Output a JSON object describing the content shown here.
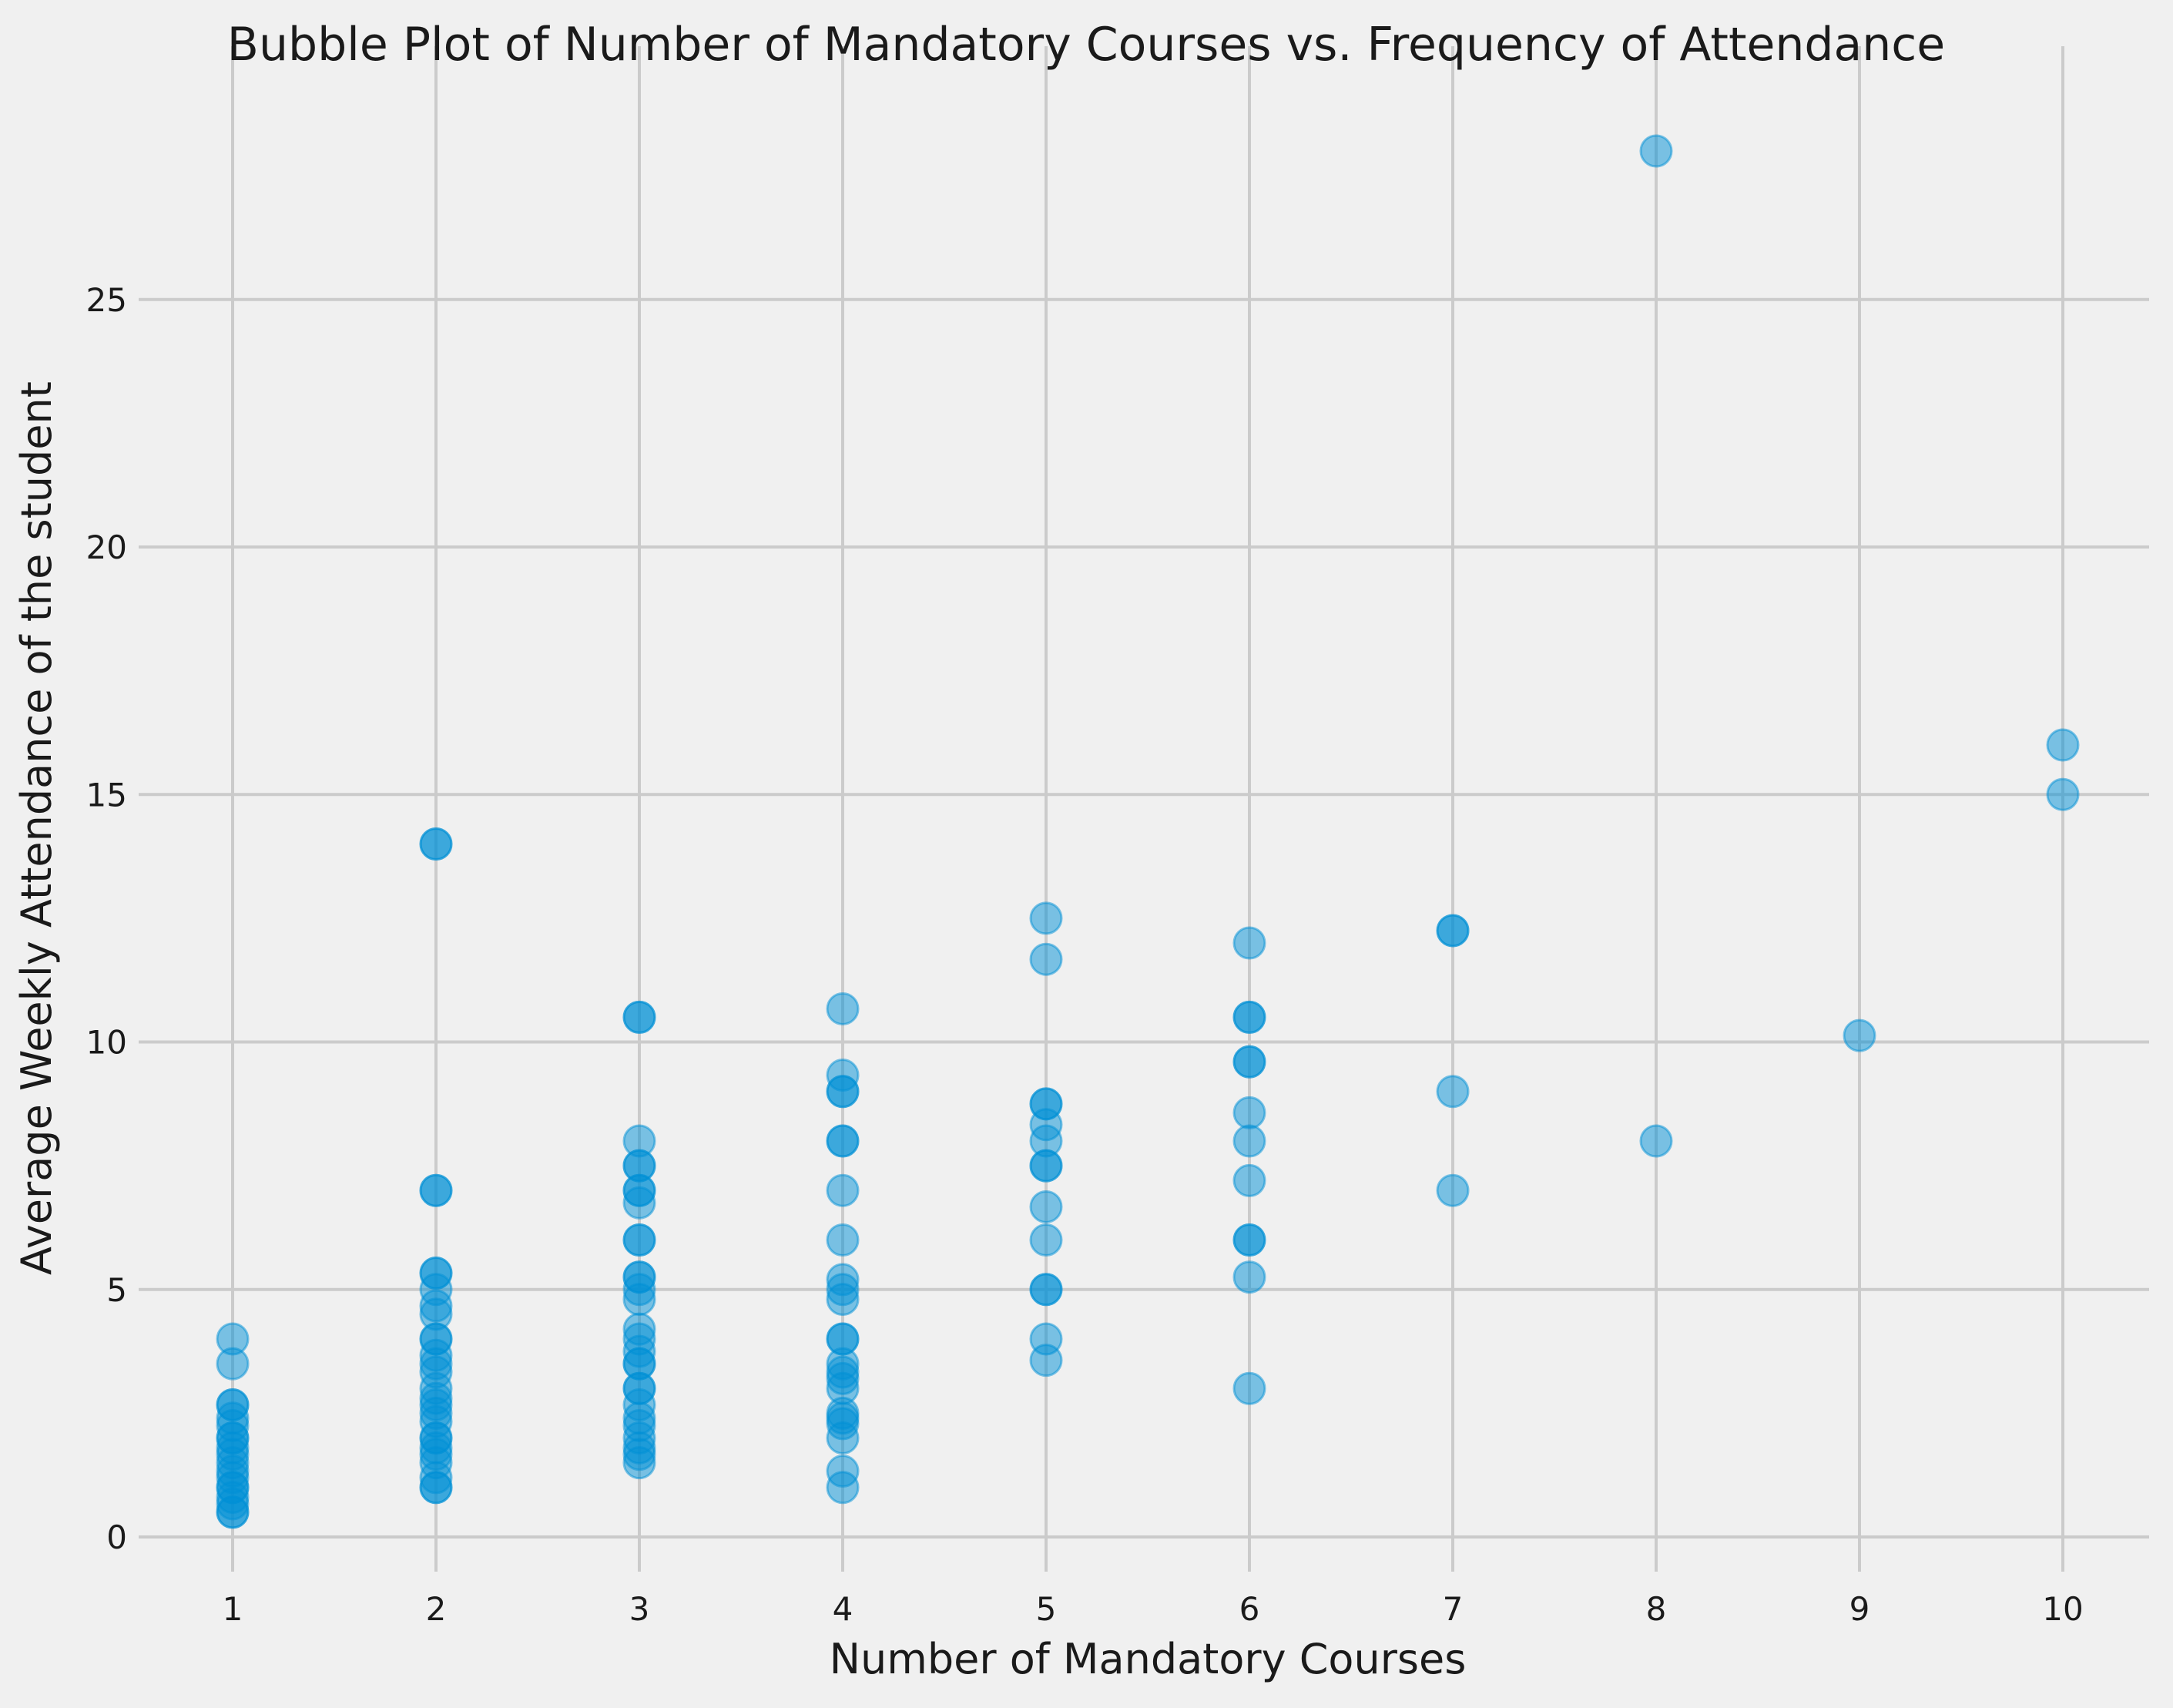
{
  "chart_data": {
    "type": "scatter",
    "title": "Bubble Plot of Number of Mandatory Courses vs. Frequency of Attendance",
    "xlabel": "Number of Mandatory Courses",
    "ylabel": "Average Weekly Attendance of the student",
    "xlim": [
      0.5,
      10.5
    ],
    "ylim": [
      -0.8,
      30
    ],
    "xticks": [
      1,
      2,
      3,
      4,
      5,
      6,
      7,
      8,
      9,
      10
    ],
    "yticks": [
      0,
      5,
      10,
      15,
      20,
      25
    ],
    "grid": true,
    "marker_color": "#008fd5",
    "marker_opacity": 0.5,
    "points": [
      {
        "x": 1,
        "y": 4.0
      },
      {
        "x": 1,
        "y": 3.5
      },
      {
        "x": 1,
        "y": 2.67
      },
      {
        "x": 1,
        "y": 2.67
      },
      {
        "x": 1,
        "y": 2.4
      },
      {
        "x": 1,
        "y": 2.25
      },
      {
        "x": 1,
        "y": 2.0
      },
      {
        "x": 1,
        "y": 2.0
      },
      {
        "x": 1,
        "y": 1.8
      },
      {
        "x": 1,
        "y": 1.67
      },
      {
        "x": 1,
        "y": 1.5
      },
      {
        "x": 1,
        "y": 1.33
      },
      {
        "x": 1,
        "y": 1.2
      },
      {
        "x": 1,
        "y": 1.0
      },
      {
        "x": 1,
        "y": 1.0
      },
      {
        "x": 1,
        "y": 0.8
      },
      {
        "x": 1,
        "y": 0.67
      },
      {
        "x": 1,
        "y": 0.5
      },
      {
        "x": 1,
        "y": 0.5
      },
      {
        "x": 2,
        "y": 14.0
      },
      {
        "x": 2,
        "y": 14.0
      },
      {
        "x": 2,
        "y": 7.0
      },
      {
        "x": 2,
        "y": 7.0
      },
      {
        "x": 2,
        "y": 5.33
      },
      {
        "x": 2,
        "y": 5.33
      },
      {
        "x": 2,
        "y": 5.0
      },
      {
        "x": 2,
        "y": 4.67
      },
      {
        "x": 2,
        "y": 4.5
      },
      {
        "x": 2,
        "y": 4.0
      },
      {
        "x": 2,
        "y": 4.0
      },
      {
        "x": 2,
        "y": 3.67
      },
      {
        "x": 2,
        "y": 3.5
      },
      {
        "x": 2,
        "y": 3.33
      },
      {
        "x": 2,
        "y": 3.0
      },
      {
        "x": 2,
        "y": 2.8
      },
      {
        "x": 2,
        "y": 2.67
      },
      {
        "x": 2,
        "y": 2.5
      },
      {
        "x": 2,
        "y": 2.33
      },
      {
        "x": 2,
        "y": 2.0
      },
      {
        "x": 2,
        "y": 2.0
      },
      {
        "x": 2,
        "y": 1.8
      },
      {
        "x": 2,
        "y": 1.67
      },
      {
        "x": 2,
        "y": 1.5
      },
      {
        "x": 2,
        "y": 1.2
      },
      {
        "x": 2,
        "y": 1.0
      },
      {
        "x": 2,
        "y": 1.0
      },
      {
        "x": 3,
        "y": 10.5
      },
      {
        "x": 3,
        "y": 10.5
      },
      {
        "x": 3,
        "y": 8.0
      },
      {
        "x": 3,
        "y": 7.5
      },
      {
        "x": 3,
        "y": 7.5
      },
      {
        "x": 3,
        "y": 7.0
      },
      {
        "x": 3,
        "y": 7.0
      },
      {
        "x": 3,
        "y": 6.75
      },
      {
        "x": 3,
        "y": 6.0
      },
      {
        "x": 3,
        "y": 6.0
      },
      {
        "x": 3,
        "y": 5.25
      },
      {
        "x": 3,
        "y": 5.25
      },
      {
        "x": 3,
        "y": 5.0
      },
      {
        "x": 3,
        "y": 4.8
      },
      {
        "x": 3,
        "y": 4.2
      },
      {
        "x": 3,
        "y": 4.0
      },
      {
        "x": 3,
        "y": 3.75
      },
      {
        "x": 3,
        "y": 3.5
      },
      {
        "x": 3,
        "y": 3.5
      },
      {
        "x": 3,
        "y": 3.0
      },
      {
        "x": 3,
        "y": 3.0
      },
      {
        "x": 3,
        "y": 2.67
      },
      {
        "x": 3,
        "y": 2.4
      },
      {
        "x": 3,
        "y": 2.25
      },
      {
        "x": 3,
        "y": 2.0
      },
      {
        "x": 3,
        "y": 1.8
      },
      {
        "x": 3,
        "y": 1.67
      },
      {
        "x": 3,
        "y": 1.5
      },
      {
        "x": 4,
        "y": 10.67
      },
      {
        "x": 4,
        "y": 9.33
      },
      {
        "x": 4,
        "y": 9.0
      },
      {
        "x": 4,
        "y": 9.0
      },
      {
        "x": 4,
        "y": 8.0
      },
      {
        "x": 4,
        "y": 8.0
      },
      {
        "x": 4,
        "y": 7.0
      },
      {
        "x": 4,
        "y": 6.0
      },
      {
        "x": 4,
        "y": 5.2
      },
      {
        "x": 4,
        "y": 5.0
      },
      {
        "x": 4,
        "y": 4.8
      },
      {
        "x": 4,
        "y": 4.0
      },
      {
        "x": 4,
        "y": 4.0
      },
      {
        "x": 4,
        "y": 3.5
      },
      {
        "x": 4,
        "y": 3.33
      },
      {
        "x": 4,
        "y": 3.2
      },
      {
        "x": 4,
        "y": 3.0
      },
      {
        "x": 4,
        "y": 2.5
      },
      {
        "x": 4,
        "y": 2.4
      },
      {
        "x": 4,
        "y": 2.29
      },
      {
        "x": 4,
        "y": 2.0
      },
      {
        "x": 4,
        "y": 1.33
      },
      {
        "x": 4,
        "y": 1.0
      },
      {
        "x": 5,
        "y": 12.5
      },
      {
        "x": 5,
        "y": 11.67
      },
      {
        "x": 5,
        "y": 8.75
      },
      {
        "x": 5,
        "y": 8.75
      },
      {
        "x": 5,
        "y": 8.33
      },
      {
        "x": 5,
        "y": 8.0
      },
      {
        "x": 5,
        "y": 7.5
      },
      {
        "x": 5,
        "y": 7.5
      },
      {
        "x": 5,
        "y": 6.67
      },
      {
        "x": 5,
        "y": 6.0
      },
      {
        "x": 5,
        "y": 5.0
      },
      {
        "x": 5,
        "y": 5.0
      },
      {
        "x": 5,
        "y": 4.0
      },
      {
        "x": 5,
        "y": 3.57
      },
      {
        "x": 6,
        "y": 12.0
      },
      {
        "x": 6,
        "y": 10.5
      },
      {
        "x": 6,
        "y": 10.5
      },
      {
        "x": 6,
        "y": 9.6
      },
      {
        "x": 6,
        "y": 9.6
      },
      {
        "x": 6,
        "y": 8.57
      },
      {
        "x": 6,
        "y": 8.0
      },
      {
        "x": 6,
        "y": 7.2
      },
      {
        "x": 6,
        "y": 6.0
      },
      {
        "x": 6,
        "y": 6.0
      },
      {
        "x": 6,
        "y": 5.25
      },
      {
        "x": 6,
        "y": 3.0
      },
      {
        "x": 7,
        "y": 12.25
      },
      {
        "x": 7,
        "y": 12.25
      },
      {
        "x": 7,
        "y": 9.0
      },
      {
        "x": 7,
        "y": 7.0
      },
      {
        "x": 8,
        "y": 28.0
      },
      {
        "x": 8,
        "y": 8.0
      },
      {
        "x": 9,
        "y": 10.13
      },
      {
        "x": 10,
        "y": 16.0
      },
      {
        "x": 10,
        "y": 15.0
      }
    ]
  }
}
